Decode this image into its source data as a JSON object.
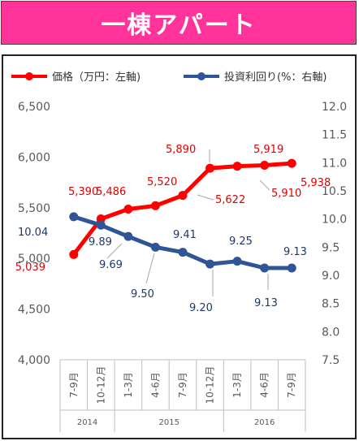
{
  "banner": {
    "title": "一棟アパート"
  },
  "chart_data": {
    "type": "line",
    "categories": [
      "7-9月",
      "10-12月",
      "1-3月",
      "4-6月",
      "7-9月",
      "10-12月",
      "1-3月",
      "4-6月",
      "7-9月"
    ],
    "years": [
      {
        "label": "2014",
        "start": 0,
        "end": 1
      },
      {
        "label": "2015",
        "start": 2,
        "end": 5
      },
      {
        "label": "2016",
        "start": 6,
        "end": 8
      }
    ],
    "series": [
      {
        "name": "価格（万円：左軸)",
        "axis": "left",
        "color": "#ff0000",
        "values": [
          5039,
          5390,
          5486,
          5520,
          5622,
          5890,
          5910,
          5919,
          5938
        ],
        "labels": [
          "5,039",
          "5,390",
          "5,486",
          "5,520",
          "5,622",
          "5,890",
          "5,910",
          "5,919",
          "5,938"
        ]
      },
      {
        "name": "投資利回り(%：右軸)",
        "axis": "right",
        "color": "#2f5597",
        "values": [
          10.04,
          9.89,
          9.69,
          9.5,
          9.41,
          9.2,
          9.25,
          9.13,
          9.13
        ],
        "labels": [
          "10.04",
          "9.89",
          "9.69",
          "9.50",
          "9.41",
          "9.20",
          "9.25",
          "9.13",
          "9.13"
        ]
      }
    ],
    "y_left": {
      "min": 4000,
      "max": 6500,
      "ticks": [
        "4,000",
        "4,500",
        "5,000",
        "5,500",
        "6,000",
        "6,500"
      ]
    },
    "y_right": {
      "min": 7.5,
      "max": 12.0,
      "ticks": [
        "7.5",
        "8.0",
        "8.5",
        "9.0",
        "9.5",
        "10.0",
        "10.5",
        "11.0",
        "11.5",
        "12.0"
      ]
    },
    "legend_position": "top",
    "grid": false
  }
}
